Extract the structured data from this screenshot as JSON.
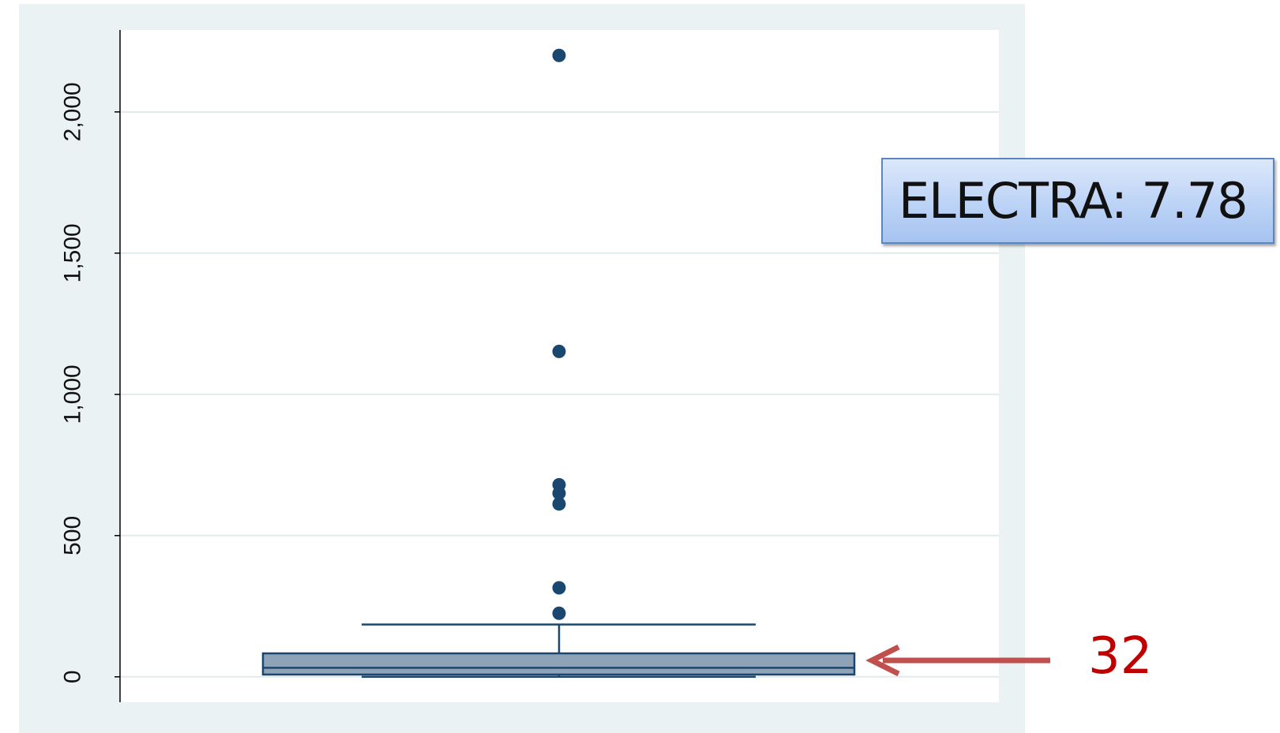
{
  "chart_data": {
    "type": "boxplot",
    "title": "",
    "xlabel": "",
    "ylabel": "",
    "ylim": [
      -90,
      2290
    ],
    "yticks": [
      0,
      500,
      1000,
      1500,
      2000
    ],
    "ytick_labels": [
      "0",
      "500",
      "1,000",
      "1,500",
      "2,000"
    ],
    "grid": true,
    "box": {
      "lower_whisker": 0,
      "q1": 8,
      "median": 32,
      "q3": 83,
      "upper_whisker": 185
    },
    "outliers": [
      2200,
      1152,
      680,
      650,
      612,
      315,
      225
    ],
    "colors": {
      "outer_background": "#eaf2f3",
      "plot_background": "#ffffff",
      "gridline": "#e1eaec",
      "box_fill": "#8fa3b8",
      "box_stroke": "#1a476f",
      "outlier": "#1a476f",
      "arrow": "#c0504d",
      "annotation_text": "#c00000"
    }
  },
  "annotations": {
    "callout_label": "ELECTRA: 7.78",
    "arrow_label": "32"
  }
}
